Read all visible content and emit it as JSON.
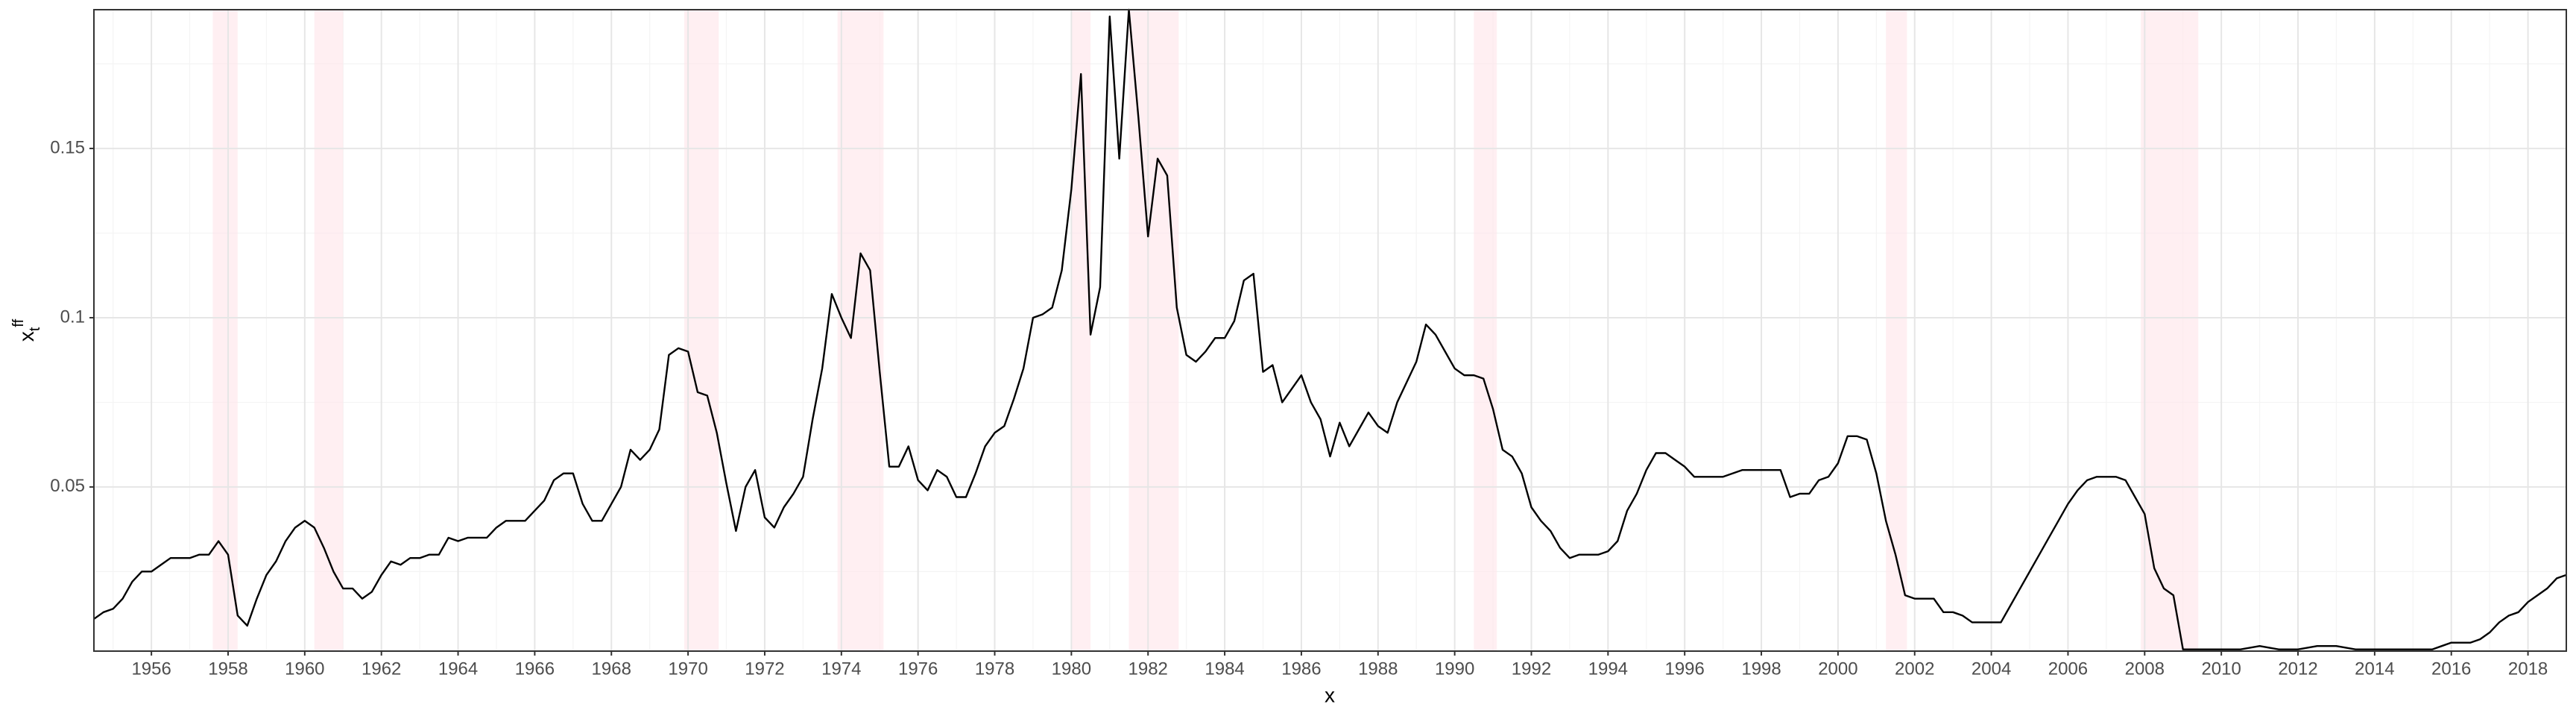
{
  "chart_data": {
    "type": "line",
    "xlabel": "x",
    "ylabel": {
      "base": "x",
      "sub": "t",
      "sup": "ff"
    },
    "color": "#000000",
    "shade_color": "#ffe4e9",
    "grid": true,
    "xlim": [
      1954.5,
      2019.0
    ],
    "ylim": [
      0.0015,
      0.191
    ],
    "xticks": [
      1956,
      1958,
      1960,
      1962,
      1964,
      1966,
      1968,
      1970,
      1972,
      1974,
      1976,
      1978,
      1980,
      1982,
      1984,
      1986,
      1988,
      1990,
      1992,
      1994,
      1996,
      1998,
      2000,
      2002,
      2004,
      2006,
      2008,
      2010,
      2012,
      2014,
      2016,
      2018
    ],
    "yticks": [
      0.05,
      0.1,
      0.15
    ],
    "shaded_regions": [
      [
        1957.6,
        1958.25
      ],
      [
        1960.25,
        1961.0
      ],
      [
        1969.9,
        1970.8
      ],
      [
        1973.9,
        1975.1
      ],
      [
        1980.0,
        1980.5
      ],
      [
        1981.5,
        1982.8
      ],
      [
        1990.5,
        1991.1
      ],
      [
        2001.25,
        2001.8
      ],
      [
        2007.9,
        2009.4
      ]
    ],
    "x": [
      1954.5,
      1954.75,
      1955,
      1955.25,
      1955.5,
      1955.75,
      1956,
      1956.25,
      1956.5,
      1956.75,
      1957,
      1957.25,
      1957.5,
      1957.75,
      1958,
      1958.25,
      1958.5,
      1958.75,
      1959,
      1959.25,
      1959.5,
      1959.75,
      1960,
      1960.25,
      1960.5,
      1960.75,
      1961,
      1961.25,
      1961.5,
      1961.75,
      1962,
      1962.25,
      1962.5,
      1962.75,
      1963,
      1963.25,
      1963.5,
      1963.75,
      1964,
      1964.25,
      1964.5,
      1964.75,
      1965,
      1965.25,
      1965.5,
      1965.75,
      1966,
      1966.25,
      1966.5,
      1966.75,
      1967,
      1967.25,
      1967.5,
      1967.75,
      1968,
      1968.25,
      1968.5,
      1968.75,
      1969,
      1969.25,
      1969.5,
      1969.75,
      1970,
      1970.25,
      1970.5,
      1970.75,
      1971,
      1971.25,
      1971.5,
      1971.75,
      1972,
      1972.25,
      1972.5,
      1972.75,
      1973,
      1973.25,
      1973.5,
      1973.75,
      1974,
      1974.25,
      1974.5,
      1974.75,
      1975,
      1975.25,
      1975.5,
      1975.75,
      1976,
      1976.25,
      1976.5,
      1976.75,
      1977,
      1977.25,
      1977.5,
      1977.75,
      1978,
      1978.25,
      1978.5,
      1978.75,
      1979,
      1979.25,
      1979.5,
      1979.75,
      1980,
      1980.25,
      1980.5,
      1980.75,
      1981,
      1981.25,
      1981.5,
      1981.75,
      1982,
      1982.25,
      1982.5,
      1982.75,
      1983,
      1983.25,
      1983.5,
      1983.75,
      1984,
      1984.25,
      1984.5,
      1984.75,
      1985,
      1985.25,
      1985.5,
      1985.75,
      1986,
      1986.25,
      1986.5,
      1986.75,
      1987,
      1987.25,
      1987.5,
      1987.75,
      1988,
      1988.25,
      1988.5,
      1988.75,
      1989,
      1989.25,
      1989.5,
      1989.75,
      1990,
      1990.25,
      1990.5,
      1990.75,
      1991,
      1991.25,
      1991.5,
      1991.75,
      1992,
      1992.25,
      1992.5,
      1992.75,
      1993,
      1993.25,
      1993.5,
      1993.75,
      1994,
      1994.25,
      1994.5,
      1994.75,
      1995,
      1995.25,
      1995.5,
      1995.75,
      1996,
      1996.25,
      1996.5,
      1996.75,
      1997,
      1997.25,
      1997.5,
      1997.75,
      1998,
      1998.25,
      1998.5,
      1998.75,
      1999,
      1999.25,
      1999.5,
      1999.75,
      2000,
      2000.25,
      2000.5,
      2000.75,
      2001,
      2001.25,
      2001.5,
      2001.75,
      2002,
      2002.25,
      2002.5,
      2002.75,
      2003,
      2003.25,
      2003.5,
      2003.75,
      2004,
      2004.25,
      2004.5,
      2004.75,
      2005,
      2005.25,
      2005.5,
      2005.75,
      2006,
      2006.25,
      2006.5,
      2006.75,
      2007,
      2007.25,
      2007.5,
      2007.75,
      2008,
      2008.25,
      2008.5,
      2008.75,
      2009,
      2009.25,
      2009.5,
      2009.75,
      2010.5,
      2011,
      2011.5,
      2012,
      2012.5,
      2013,
      2013.5,
      2014,
      2014.5,
      2015,
      2015.5,
      2015.75,
      2016,
      2016.25,
      2016.5,
      2016.75,
      2017,
      2017.25,
      2017.5,
      2017.75,
      2018,
      2018.25,
      2018.5,
      2018.75,
      2019
    ],
    "values": [
      0.011,
      0.013,
      0.014,
      0.017,
      0.022,
      0.025,
      0.025,
      0.027,
      0.029,
      0.029,
      0.029,
      0.03,
      0.03,
      0.034,
      0.03,
      0.012,
      0.009,
      0.017,
      0.024,
      0.028,
      0.034,
      0.038,
      0.04,
      0.038,
      0.032,
      0.025,
      0.02,
      0.02,
      0.017,
      0.019,
      0.024,
      0.028,
      0.027,
      0.029,
      0.029,
      0.03,
      0.03,
      0.035,
      0.034,
      0.035,
      0.035,
      0.035,
      0.038,
      0.04,
      0.04,
      0.04,
      0.043,
      0.046,
      0.052,
      0.054,
      0.054,
      0.045,
      0.04,
      0.04,
      0.045,
      0.05,
      0.061,
      0.058,
      0.061,
      0.067,
      0.089,
      0.091,
      0.09,
      0.078,
      0.077,
      0.066,
      0.051,
      0.037,
      0.05,
      0.055,
      0.041,
      0.038,
      0.044,
      0.048,
      0.053,
      0.07,
      0.085,
      0.107,
      0.1,
      0.094,
      0.119,
      0.114,
      0.084,
      0.056,
      0.056,
      0.062,
      0.052,
      0.049,
      0.055,
      0.053,
      0.047,
      0.047,
      0.054,
      0.062,
      0.066,
      0.068,
      0.076,
      0.085,
      0.1,
      0.101,
      0.103,
      0.114,
      0.138,
      0.172,
      0.095,
      0.109,
      0.189,
      0.147,
      0.191,
      0.159,
      0.124,
      0.147,
      0.142,
      0.103,
      0.089,
      0.087,
      0.09,
      0.094,
      0.094,
      0.099,
      0.111,
      0.113,
      0.084,
      0.086,
      0.075,
      0.079,
      0.083,
      0.075,
      0.07,
      0.059,
      0.069,
      0.062,
      0.067,
      0.072,
      0.068,
      0.066,
      0.075,
      0.081,
      0.087,
      0.098,
      0.095,
      0.09,
      0.085,
      0.083,
      0.083,
      0.082,
      0.073,
      0.061,
      0.059,
      0.054,
      0.044,
      0.04,
      0.037,
      0.032,
      0.029,
      0.03,
      0.03,
      0.03,
      0.031,
      0.034,
      0.043,
      0.048,
      0.055,
      0.06,
      0.06,
      0.058,
      0.056,
      0.053,
      0.053,
      0.053,
      0.053,
      0.054,
      0.055,
      0.055,
      0.055,
      0.055,
      0.055,
      0.047,
      0.048,
      0.048,
      0.052,
      0.053,
      0.057,
      0.065,
      0.065,
      0.064,
      0.054,
      0.04,
      0.03,
      0.018,
      0.017,
      0.017,
      0.017,
      0.013,
      0.013,
      0.012,
      0.01,
      0.01,
      0.01,
      0.01,
      0.015,
      0.02,
      0.025,
      0.03,
      0.035,
      0.04,
      0.045,
      0.049,
      0.052,
      0.053,
      0.053,
      0.053,
      0.052,
      0.047,
      0.042,
      0.026,
      0.02,
      0.018,
      0.002,
      0.002,
      0.002,
      0.002,
      0.002,
      0.003,
      0.002,
      0.002,
      0.003,
      0.003,
      0.002,
      0.002,
      0.002,
      0.002,
      0.002,
      0.003,
      0.004,
      0.004,
      0.004,
      0.005,
      0.007,
      0.01,
      0.012,
      0.013,
      0.016,
      0.018,
      0.02,
      0.023,
      0.024
    ]
  }
}
